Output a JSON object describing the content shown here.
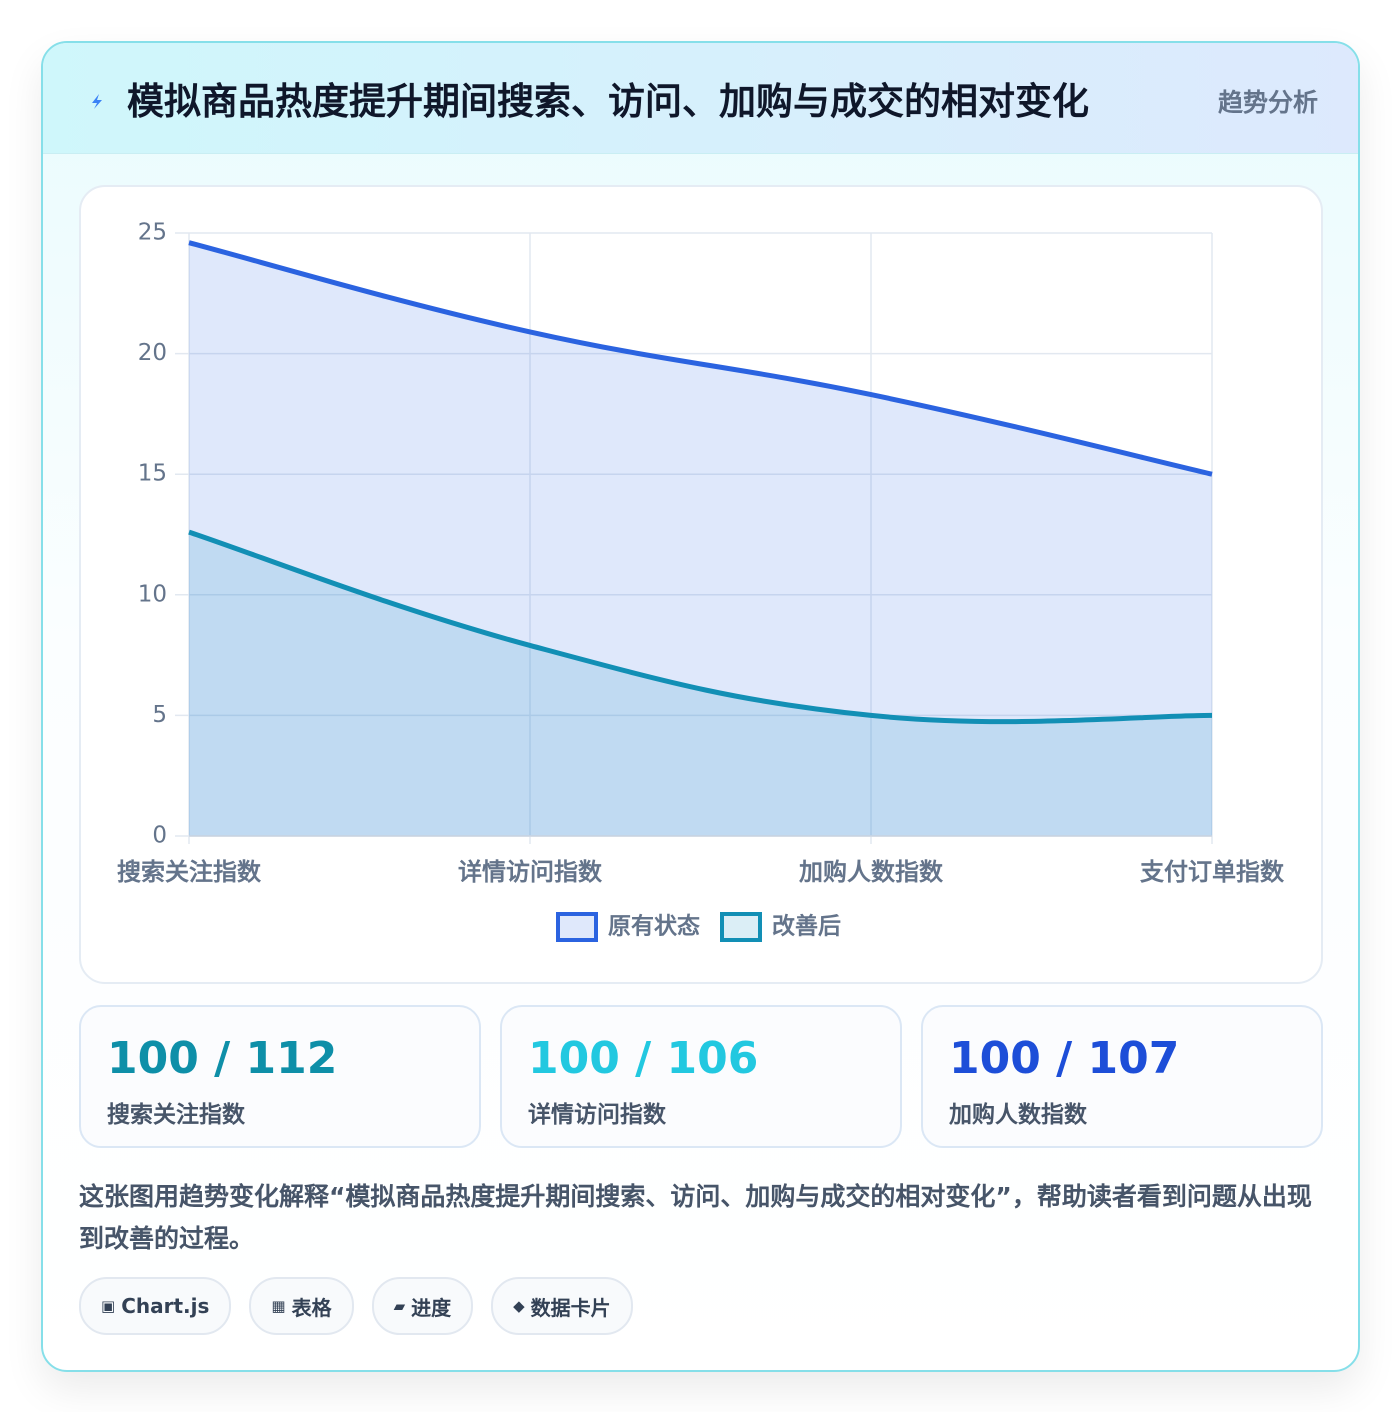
{
  "header": {
    "title": "模拟商品热度提升期间搜索、访问、加购与成交的相对变化",
    "badge": "趋势分析"
  },
  "chart_data": {
    "type": "line",
    "categories": [
      "搜索关注指数",
      "详情访问指数",
      "加购人数指数",
      "支付订单指数"
    ],
    "series": [
      {
        "name": "原有状态",
        "color": "#2b63e0",
        "fill": "rgba(59,110,230,0.16)",
        "values": [
          24.6,
          20.9,
          18.3,
          15
        ]
      },
      {
        "name": "改善后",
        "color": "#128fb5",
        "fill": "rgba(28,150,200,0.16)",
        "values": [
          12.6,
          7.9,
          5,
          5
        ]
      }
    ],
    "ylim": [
      0,
      25
    ],
    "yticks": [
      0,
      5,
      10,
      15,
      20,
      25
    ],
    "grid": true,
    "legend": "bottom"
  },
  "stats": [
    {
      "value": "100 / 112",
      "label": "搜索关注指数",
      "color": "#0e8fa8"
    },
    {
      "value": "100 / 106",
      "label": "详情访问指数",
      "color": "#22c8e0"
    },
    {
      "value": "100 / 107",
      "label": "加购人数指数",
      "color": "#1d4ed8"
    }
  ],
  "description": "这张图用趋势变化解释“模拟商品热度提升期间搜索、访问、加购与成交的相对变化”，帮助读者看到问题从出现到改善的过程。",
  "tags": [
    {
      "icon": "▣",
      "text": "Chart.js"
    },
    {
      "icon": "▦",
      "text": "表格"
    },
    {
      "icon": "▰",
      "text": "进度"
    },
    {
      "icon": "◆",
      "text": "数据卡片"
    }
  ]
}
